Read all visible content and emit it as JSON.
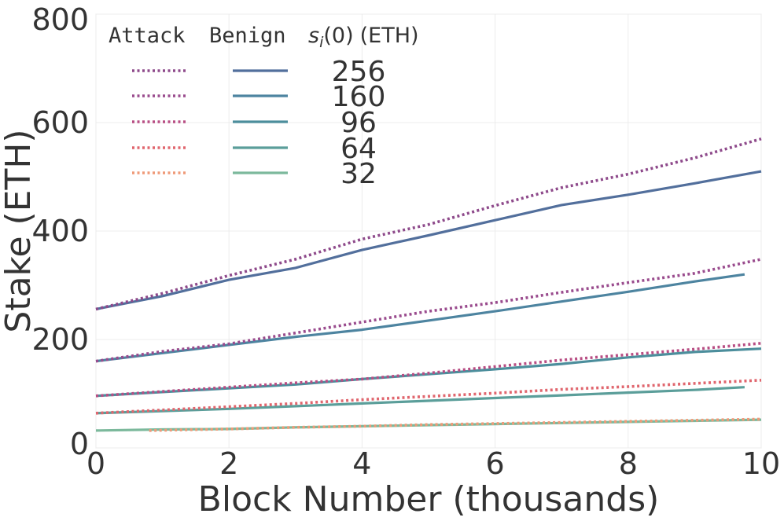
{
  "chart_data": {
    "type": "line",
    "xlabel": "Block Number (thousands)",
    "ylabel": "Stake (ETH)",
    "xlim": [
      0,
      10
    ],
    "ylim": [
      0,
      800
    ],
    "xticks": [
      "0",
      "2",
      "4",
      "6",
      "8",
      "10"
    ],
    "yticks": [
      "0",
      "200",
      "400",
      "600",
      "800"
    ],
    "grid": true,
    "legend": {
      "placement": "top-left",
      "header": {
        "attack": "Attack",
        "benign": "Benign",
        "stake_symbol": "s",
        "stake_subscript": "i",
        "stake_arg": "(0)",
        "stake_unit": "(ETH)"
      },
      "entries": [
        "256",
        "160",
        "96",
        "64",
        "32"
      ]
    },
    "series": [
      {
        "initial_stake": "256",
        "kind": "attack",
        "style": "dotted",
        "color": "#8e4a8b",
        "x": [
          0,
          1,
          2,
          3,
          4,
          5,
          6,
          7,
          8,
          9,
          10
        ],
        "y": [
          256,
          285,
          318,
          348,
          385,
          412,
          447,
          480,
          505,
          535,
          570
        ]
      },
      {
        "initial_stake": "256",
        "kind": "benign",
        "style": "solid",
        "color": "#526f9c",
        "x": [
          0,
          1,
          2,
          3,
          4,
          5,
          6,
          7,
          8,
          9,
          10
        ],
        "y": [
          256,
          280,
          310,
          332,
          365,
          392,
          420,
          448,
          467,
          488,
          510
        ]
      },
      {
        "initial_stake": "160",
        "kind": "attack",
        "style": "dotted",
        "color": "#9a4c8e",
        "x": [
          0,
          1,
          2,
          3,
          4,
          5,
          6,
          7,
          8,
          9,
          10
        ],
        "y": [
          160,
          178,
          192,
          212,
          232,
          252,
          268,
          287,
          305,
          322,
          348
        ]
      },
      {
        "initial_stake": "160",
        "kind": "benign",
        "style": "solid",
        "color": "#4d84a0",
        "x": [
          0,
          1,
          2,
          3,
          4,
          5,
          6,
          7,
          8,
          9,
          9.75
        ],
        "y": [
          160,
          175,
          190,
          205,
          218,
          235,
          252,
          270,
          288,
          307,
          320
        ]
      },
      {
        "initial_stake": "96",
        "kind": "attack",
        "style": "dotted",
        "color": "#b84e84",
        "x": [
          0,
          1,
          2,
          3,
          4,
          5,
          6,
          7,
          8,
          9,
          10
        ],
        "y": [
          96,
          104,
          112,
          120,
          127,
          138,
          150,
          162,
          172,
          182,
          193
        ]
      },
      {
        "initial_stake": "96",
        "kind": "benign",
        "style": "solid",
        "color": "#4c8e9c",
        "x": [
          0,
          1,
          2,
          3,
          4,
          5,
          6,
          7,
          8,
          9,
          10
        ],
        "y": [
          96,
          103,
          110,
          117,
          127,
          136,
          145,
          155,
          167,
          177,
          183
        ]
      },
      {
        "initial_stake": "64",
        "kind": "attack",
        "style": "dotted",
        "color": "#e0666e",
        "x": [
          0,
          1,
          2,
          3,
          4,
          5,
          6,
          7,
          8,
          9,
          10
        ],
        "y": [
          64,
          70,
          76,
          82,
          89,
          95,
          101,
          108,
          113,
          119,
          125
        ]
      },
      {
        "initial_stake": "64",
        "kind": "benign",
        "style": "solid",
        "color": "#5b9e9a",
        "x": [
          0,
          1,
          2,
          3,
          4,
          5,
          6,
          7,
          8,
          9,
          9.75
        ],
        "y": [
          64,
          68,
          72,
          77,
          82,
          87,
          92,
          97,
          102,
          107,
          112
        ]
      },
      {
        "initial_stake": "32",
        "kind": "attack",
        "style": "dotted",
        "color": "#ef9a78",
        "x": [
          0.8,
          2,
          3,
          4,
          5,
          6,
          7,
          8,
          9,
          10
        ],
        "y": [
          32,
          35,
          38,
          40,
          43,
          45,
          47,
          49,
          51,
          53
        ]
      },
      {
        "initial_stake": "32",
        "kind": "benign",
        "style": "solid",
        "color": "#7cb99c",
        "x": [
          0,
          1,
          2,
          3,
          4,
          5,
          6,
          7,
          8,
          9,
          10
        ],
        "y": [
          32,
          34,
          35,
          38,
          40,
          42,
          44,
          46,
          48,
          50,
          52
        ]
      }
    ]
  }
}
